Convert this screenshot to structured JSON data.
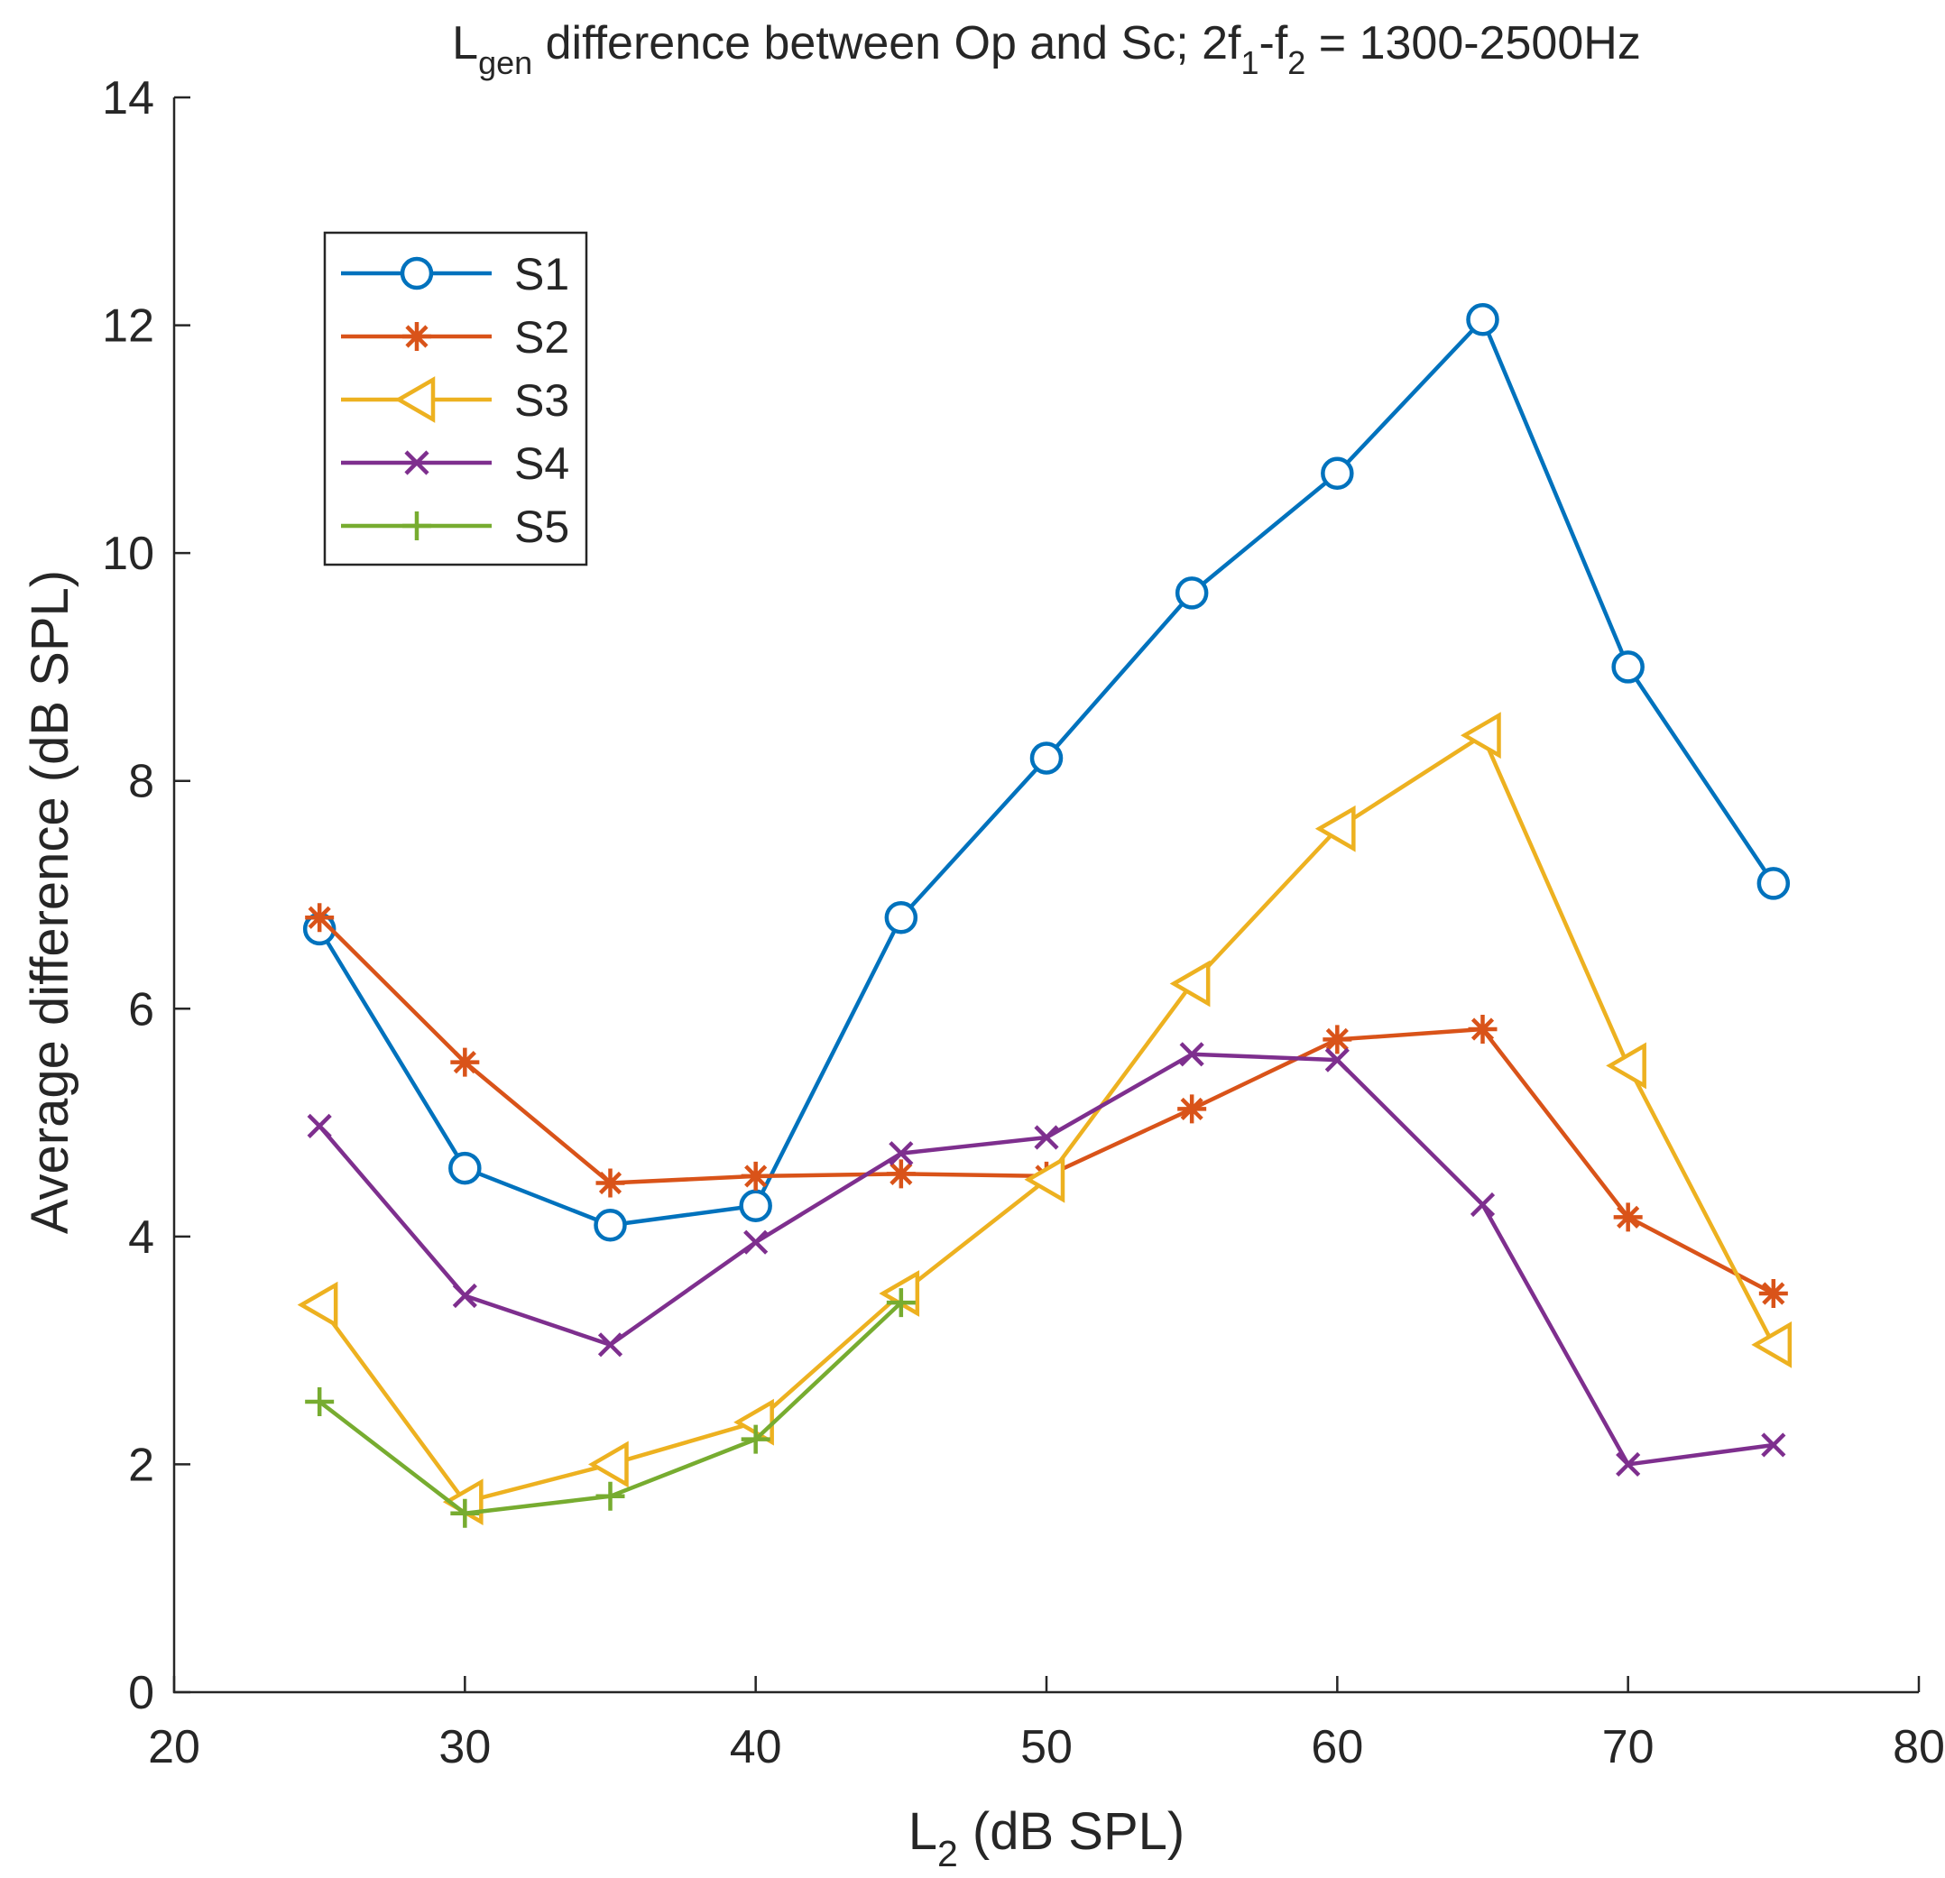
{
  "chart_data": {
    "type": "line",
    "title": {
      "parts": [
        {
          "text": "L",
          "sub": false
        },
        {
          "text": "gen",
          "sub": true
        },
        {
          "text": " difference between Op and Sc; 2f",
          "sub": false
        },
        {
          "text": "1",
          "sub": true
        },
        {
          "text": "-f",
          "sub": false
        },
        {
          "text": "2",
          "sub": true
        },
        {
          "text": " = 1300-2500Hz",
          "sub": false
        }
      ]
    },
    "xlabel": {
      "parts": [
        {
          "text": "L",
          "sub": false
        },
        {
          "text": "2",
          "sub": true
        },
        {
          "text": " (dB SPL)",
          "sub": false
        }
      ]
    },
    "ylabel": "Average difference (dB SPL)",
    "xlim": [
      20,
      80
    ],
    "ylim": [
      0,
      14
    ],
    "xticks": [
      20,
      30,
      40,
      50,
      60,
      70,
      80
    ],
    "yticks": [
      0,
      2,
      4,
      6,
      8,
      10,
      12,
      14
    ],
    "grid": false,
    "legend_position": "top-left",
    "series": [
      {
        "name": "S1",
        "color": "#0072BD",
        "marker": "circle",
        "x": [
          25,
          30,
          35,
          40,
          45,
          50,
          55,
          60,
          65,
          70,
          75
        ],
        "y": [
          6.7,
          4.6,
          4.1,
          4.27,
          6.8,
          8.2,
          9.65,
          10.7,
          12.05,
          9.0,
          7.1
        ]
      },
      {
        "name": "S2",
        "color": "#D95319",
        "marker": "asterisk",
        "x": [
          25,
          30,
          35,
          40,
          45,
          50,
          55,
          60,
          65,
          70,
          75
        ],
        "y": [
          6.8,
          5.53,
          4.47,
          4.53,
          4.55,
          4.53,
          5.12,
          5.73,
          5.82,
          4.17,
          3.5
        ]
      },
      {
        "name": "S3",
        "color": "#EDB120",
        "marker": "triangle-left",
        "x": [
          25,
          30,
          35,
          40,
          45,
          50,
          55,
          60,
          65,
          70,
          75
        ],
        "y": [
          3.4,
          1.67,
          2.0,
          2.37,
          3.5,
          4.5,
          6.22,
          7.58,
          8.4,
          5.5,
          3.05
        ]
      },
      {
        "name": "S4",
        "color": "#7E2F8E",
        "marker": "x",
        "x": [
          25,
          30,
          35,
          40,
          45,
          50,
          55,
          60,
          65,
          70,
          75
        ],
        "y": [
          4.97,
          3.48,
          3.05,
          3.95,
          4.73,
          4.87,
          5.6,
          5.55,
          4.28,
          2.0,
          2.17
        ]
      },
      {
        "name": "S5",
        "color": "#77AC30",
        "marker": "plus",
        "x": [
          25,
          30,
          35,
          40,
          45
        ],
        "y": [
          2.55,
          1.57,
          1.72,
          2.22,
          3.42
        ]
      }
    ]
  }
}
